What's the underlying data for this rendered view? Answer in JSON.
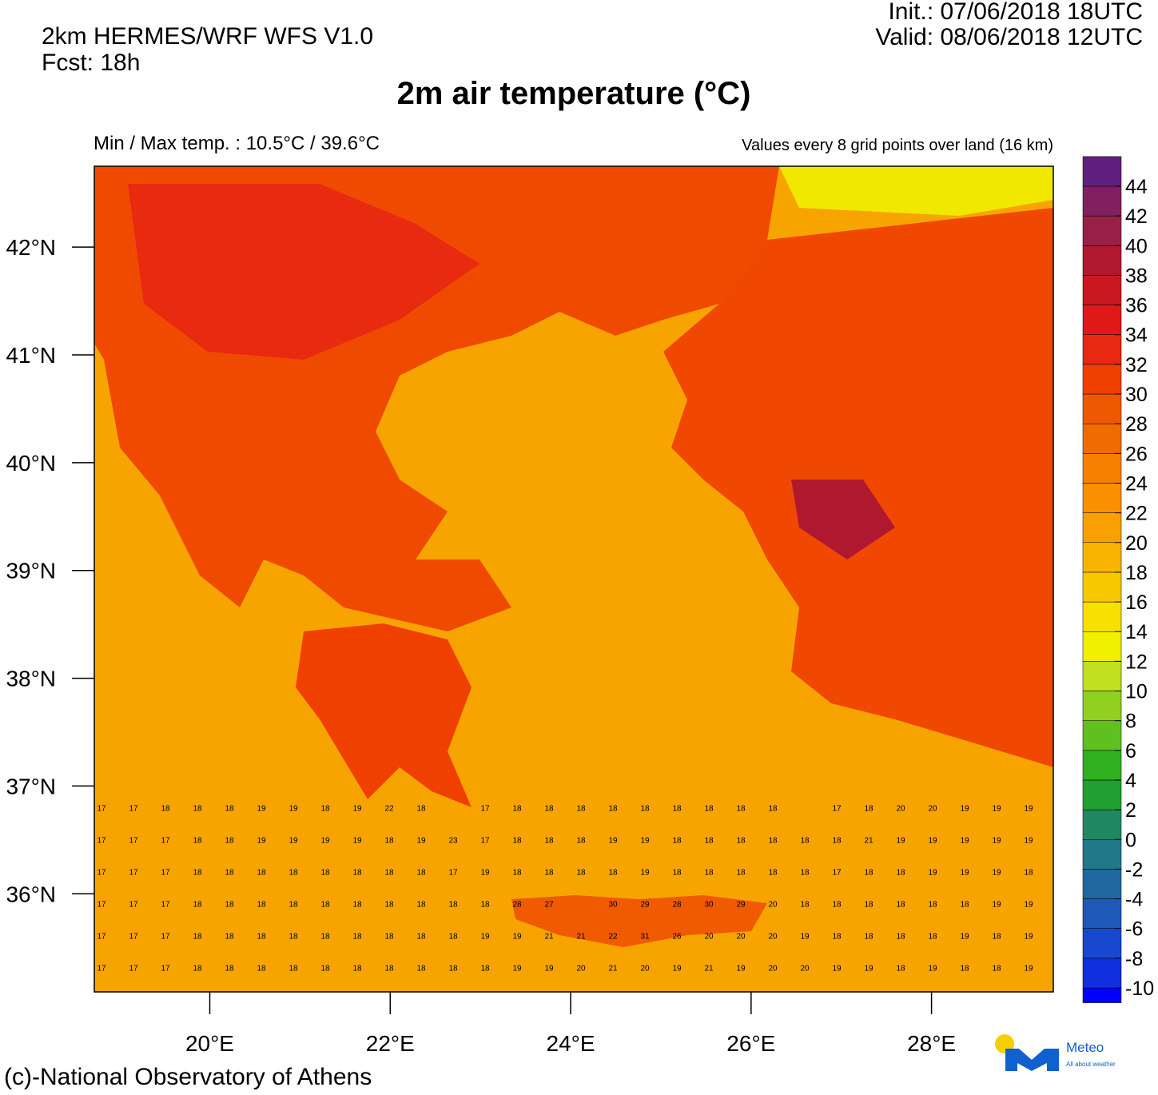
{
  "header": {
    "model": "2km HERMES/WRF WFS V1.0",
    "forecast": "Fcst: 18h",
    "init": "Init.:  07/06/2018 18UTC",
    "valid": "Valid: 08/06/2018 12UTC",
    "title": "2m air temperature (°C)",
    "minmax": "Min / Max temp. : 10.5°C / 39.6°C",
    "note": "Values every 8 grid points over land (16 km)"
  },
  "map": {
    "xlim": [
      18.72,
      29.35
    ],
    "ylim": [
      35.09,
      42.75
    ],
    "xticks": [
      {
        "value": 20,
        "label": "20°E"
      },
      {
        "value": 22,
        "label": "22°E"
      },
      {
        "value": 24,
        "label": "24°E"
      },
      {
        "value": 26,
        "label": "26°E"
      },
      {
        "value": 28,
        "label": "28°E"
      }
    ],
    "yticks": [
      {
        "value": 36,
        "label": "36°N"
      },
      {
        "value": 37,
        "label": "37°N"
      },
      {
        "value": 38,
        "label": "38°N"
      },
      {
        "value": 39,
        "label": "39°N"
      },
      {
        "value": 40,
        "label": "40°N"
      },
      {
        "value": 41,
        "label": "41°N"
      },
      {
        "value": 42,
        "label": "42°N"
      }
    ],
    "grid_values": [
      [
        17,
        17,
        18,
        18,
        18,
        19,
        19,
        18,
        19,
        22,
        18,
        null,
        17,
        18,
        18,
        18,
        18,
        18,
        18,
        18,
        18,
        18,
        null,
        17,
        18,
        20,
        20,
        19,
        19,
        19
      ],
      [
        17,
        17,
        17,
        18,
        18,
        19,
        19,
        19,
        19,
        18,
        19,
        23,
        17,
        18,
        18,
        18,
        19,
        19,
        18,
        18,
        18,
        18,
        18,
        18,
        21,
        19,
        19,
        19,
        19,
        19
      ],
      [
        17,
        17,
        17,
        18,
        18,
        18,
        18,
        18,
        18,
        18,
        18,
        17,
        19,
        18,
        18,
        18,
        18,
        19,
        18,
        18,
        18,
        18,
        18,
        17,
        18,
        18,
        19,
        19,
        19,
        18
      ],
      [
        17,
        17,
        17,
        18,
        18,
        18,
        18,
        18,
        18,
        18,
        18,
        18,
        18,
        28,
        27,
        null,
        30,
        29,
        28,
        30,
        29,
        20,
        18,
        18,
        18,
        18,
        18,
        18,
        19,
        19
      ],
      [
        17,
        17,
        17,
        18,
        18,
        18,
        18,
        18,
        18,
        18,
        18,
        18,
        19,
        19,
        21,
        21,
        22,
        31,
        26,
        20,
        20,
        20,
        19,
        18,
        18,
        18,
        18,
        19,
        18,
        19
      ],
      [
        17,
        17,
        17,
        18,
        18,
        18,
        18,
        18,
        18,
        18,
        18,
        18,
        18,
        19,
        19,
        20,
        21,
        20,
        19,
        21,
        19,
        20,
        20,
        19,
        19,
        18,
        19,
        18,
        18,
        19
      ]
    ]
  },
  "colorbar": {
    "lim": [
      -11,
      46
    ],
    "ticks": [
      -10,
      -8,
      -6,
      -4,
      -2,
      0,
      2,
      4,
      6,
      8,
      10,
      12,
      14,
      16,
      18,
      20,
      22,
      24,
      26,
      28,
      30,
      32,
      34,
      36,
      38,
      40,
      42,
      44
    ],
    "colors": [
      "#0000ff",
      "#1030e0",
      "#1848d0",
      "#2058b8",
      "#2068a0",
      "#207888",
      "#208860",
      "#20a030",
      "#30b020",
      "#60c020",
      "#90d020",
      "#c0e020",
      "#f0f000",
      "#f8e000",
      "#f8c800",
      "#f8b400",
      "#f8a000",
      "#f89000",
      "#f88000",
      "#f06c00",
      "#f05800",
      "#f04000",
      "#e82810",
      "#e01818",
      "#c81820",
      "#b01830",
      "#982048",
      "#802060",
      "#602080"
    ]
  },
  "footer": {
    "credit": "(c)-National Observatory of Athens",
    "logo": "Meteo",
    "logo_tag": "All about weather"
  }
}
